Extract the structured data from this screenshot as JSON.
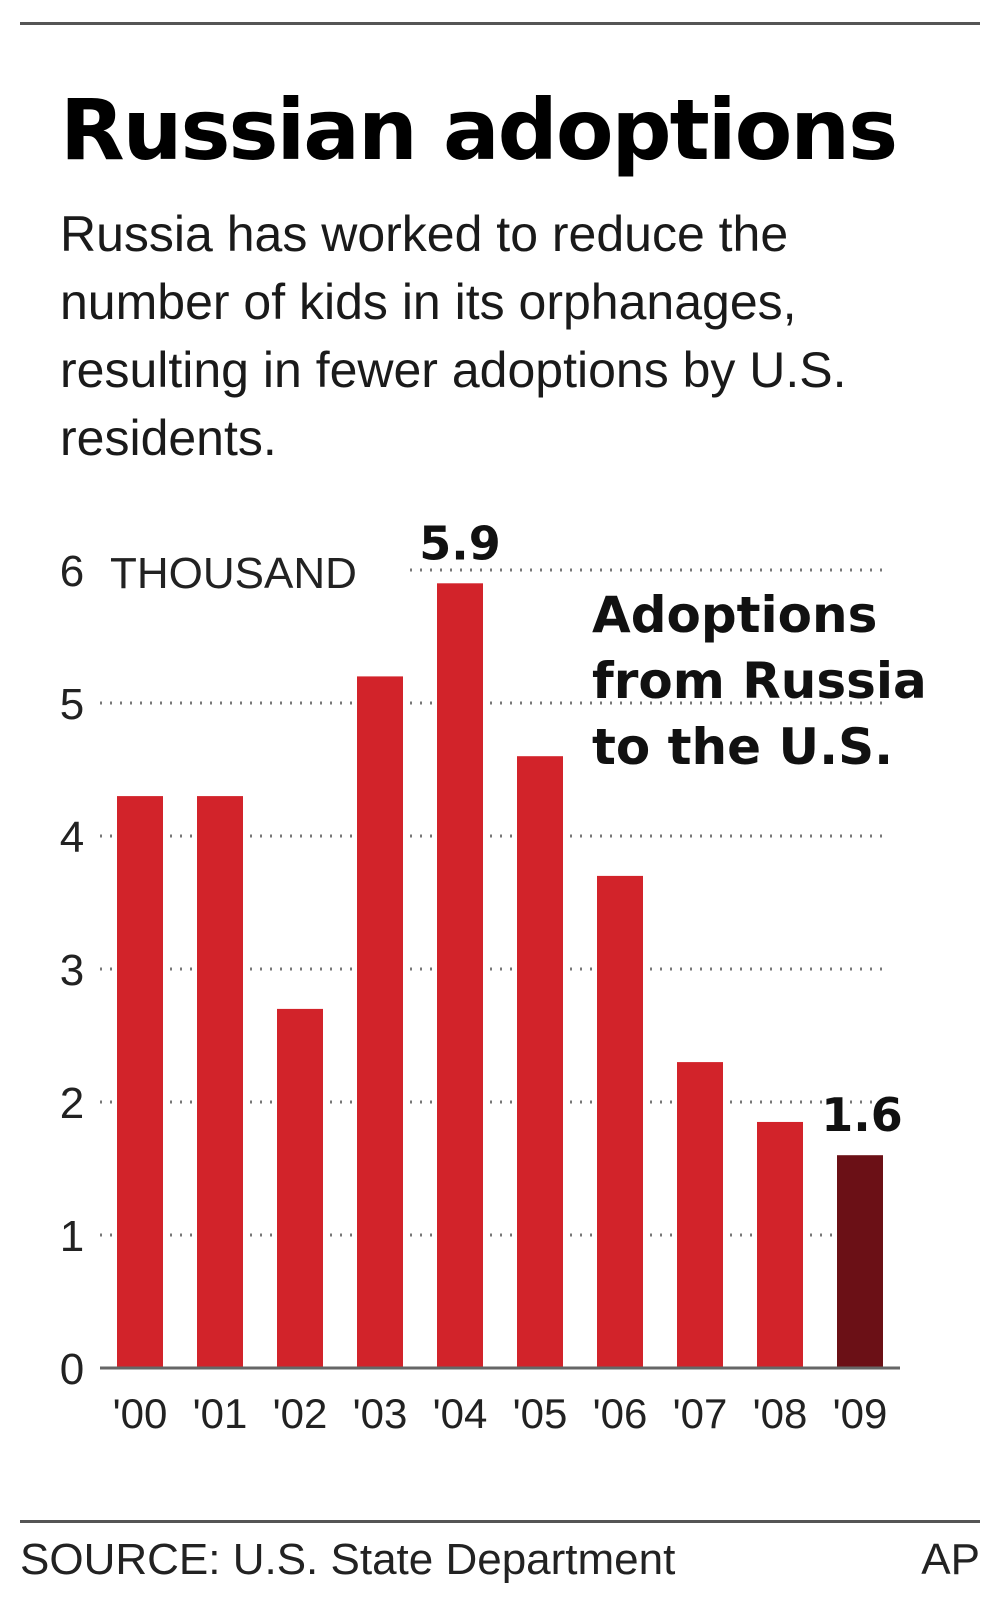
{
  "header": {
    "title": "Russian adoptions",
    "subtitle": "Russia has worked to reduce the number of kids in its orphanages, resulting in fewer adoptions by U.S. residents."
  },
  "footer": {
    "source": "SOURCE: U.S. State Department",
    "credit": "AP"
  },
  "colors": {
    "bar": "#d2232a",
    "highlight_bar": "#6b1016"
  },
  "chart_data": {
    "type": "bar",
    "title": "Russian adoptions",
    "unit_label": "THOUSAND",
    "annotation": "Adoptions from Russia to the U.S.",
    "categories": [
      "'00",
      "'01",
      "'02",
      "'03",
      "'04",
      "'05",
      "'06",
      "'07",
      "'08",
      "'09"
    ],
    "values": [
      4.3,
      4.3,
      2.7,
      5.2,
      5.9,
      4.6,
      3.7,
      2.3,
      1.85,
      1.6
    ],
    "value_labels": [
      {
        "index": 4,
        "text": "5.9"
      },
      {
        "index": 9,
        "text": "1.6"
      }
    ],
    "highlight_index": 9,
    "yticks": [
      "0",
      "1",
      "2",
      "3",
      "4",
      "5",
      "6"
    ],
    "ylim": [
      0,
      6
    ],
    "grid": "dotted horizontal"
  }
}
